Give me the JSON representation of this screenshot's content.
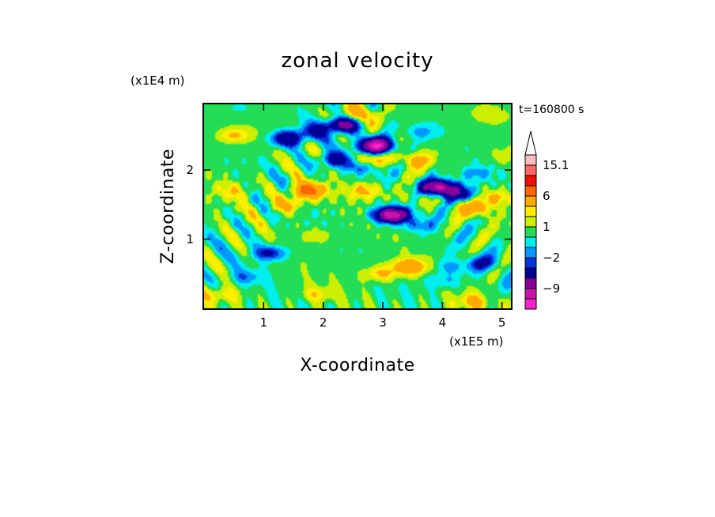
{
  "chart_data": {
    "type": "heatmap",
    "title": "zonal velocity",
    "xlabel": "X-coordinate",
    "ylabel": "Z-coordinate",
    "x_unit": "(x1E5 m)",
    "y_unit": "(x1E4 m)",
    "time_label": "t=160800 s",
    "xlim": [
      0,
      5.15
    ],
    "ylim": [
      0,
      2.95
    ],
    "x_ticks": [
      "1",
      "2",
      "3",
      "4",
      "5"
    ],
    "y_ticks": [
      "1",
      "2"
    ],
    "x_tick_values": [
      1,
      2,
      3,
      4,
      5
    ],
    "y_tick_values": [
      1,
      2
    ],
    "colorbar": {
      "levels": [
        -15,
        -12,
        -9,
        -6,
        -3,
        -2,
        -1,
        0,
        1,
        2,
        3,
        6,
        9,
        12,
        15.1
      ],
      "labels": [
        {
          "text": "15.1",
          "value": 15.1
        },
        {
          "text": "6",
          "value": 6
        },
        {
          "text": "1",
          "value": 1
        },
        {
          "text": "−2",
          "value": -2
        },
        {
          "text": "−9",
          "value": -9
        }
      ],
      "colors": [
        "#ff22cc",
        "#cc11aa",
        "#880099",
        "#000099",
        "#0033dd",
        "#0099ff",
        "#00eeee",
        "#22dd55",
        "#ccee00",
        "#ffee00",
        "#ffaa00",
        "#ff6600",
        "#ee1100",
        "#ff6666",
        "#ffbbbb"
      ],
      "max_arrow_color": "#ffffff"
    },
    "features": [
      {
        "x": 1.4,
        "z": 2.45,
        "u": -6
      },
      {
        "x": 1.8,
        "z": 2.55,
        "u": -3
      },
      {
        "x": 2.3,
        "z": 2.65,
        "u": -8
      },
      {
        "x": 2.2,
        "z": 2.15,
        "u": -5
      },
      {
        "x": 2.65,
        "z": 2.05,
        "u": -3
      },
      {
        "x": 2.9,
        "z": 2.35,
        "u": -12
      },
      {
        "x": 3.15,
        "z": 1.35,
        "u": -12
      },
      {
        "x": 3.6,
        "z": 1.2,
        "u": -2
      },
      {
        "x": 3.95,
        "z": 1.75,
        "u": -11
      },
      {
        "x": 4.3,
        "z": 1.65,
        "u": -5
      },
      {
        "x": 4.15,
        "z": 0.6,
        "u": -2
      },
      {
        "x": 4.55,
        "z": 1.95,
        "u": -2
      },
      {
        "x": 3.6,
        "z": 2.55,
        "u": -2
      },
      {
        "x": 0.7,
        "z": 0.45,
        "u": -2
      },
      {
        "x": 1.1,
        "z": 0.8,
        "u": -4
      },
      {
        "x": 4.7,
        "z": 0.65,
        "u": -3
      },
      {
        "x": 4.0,
        "z": 0.4,
        "u": -2
      },
      {
        "x": 1.75,
        "z": 1.7,
        "u": 7
      },
      {
        "x": 1.4,
        "z": 1.5,
        "u": 3
      },
      {
        "x": 2.5,
        "z": 2.8,
        "u": 3
      },
      {
        "x": 2.75,
        "z": 2.15,
        "u": 4
      },
      {
        "x": 2.7,
        "z": 1.7,
        "u": 3
      },
      {
        "x": 3.5,
        "z": 2.15,
        "u": 3
      },
      {
        "x": 3.45,
        "z": 0.6,
        "u": 5
      },
      {
        "x": 2.95,
        "z": 0.5,
        "u": 3
      },
      {
        "x": 4.5,
        "z": 1.45,
        "u": 4
      },
      {
        "x": 4.9,
        "z": 1.6,
        "u": 3
      },
      {
        "x": 0.5,
        "z": 2.5,
        "u": 3
      },
      {
        "x": 0.5,
        "z": 1.7,
        "u": 2
      },
      {
        "x": 0.6,
        "z": 2.9,
        "u": -1
      },
      {
        "x": 0.3,
        "z": 0.2,
        "u": 2
      },
      {
        "x": 1.9,
        "z": 0.2,
        "u": 2
      },
      {
        "x": 4.5,
        "z": 0.1,
        "u": 3
      },
      {
        "x": 4.8,
        "z": 2.8,
        "u": 1
      },
      {
        "x": 1.9,
        "z": 1.05,
        "u": 1.5
      },
      {
        "x": 3.5,
        "z": 1.6,
        "u": 1.5
      },
      {
        "x": 5.05,
        "z": 2.2,
        "u": 1.5
      }
    ]
  }
}
